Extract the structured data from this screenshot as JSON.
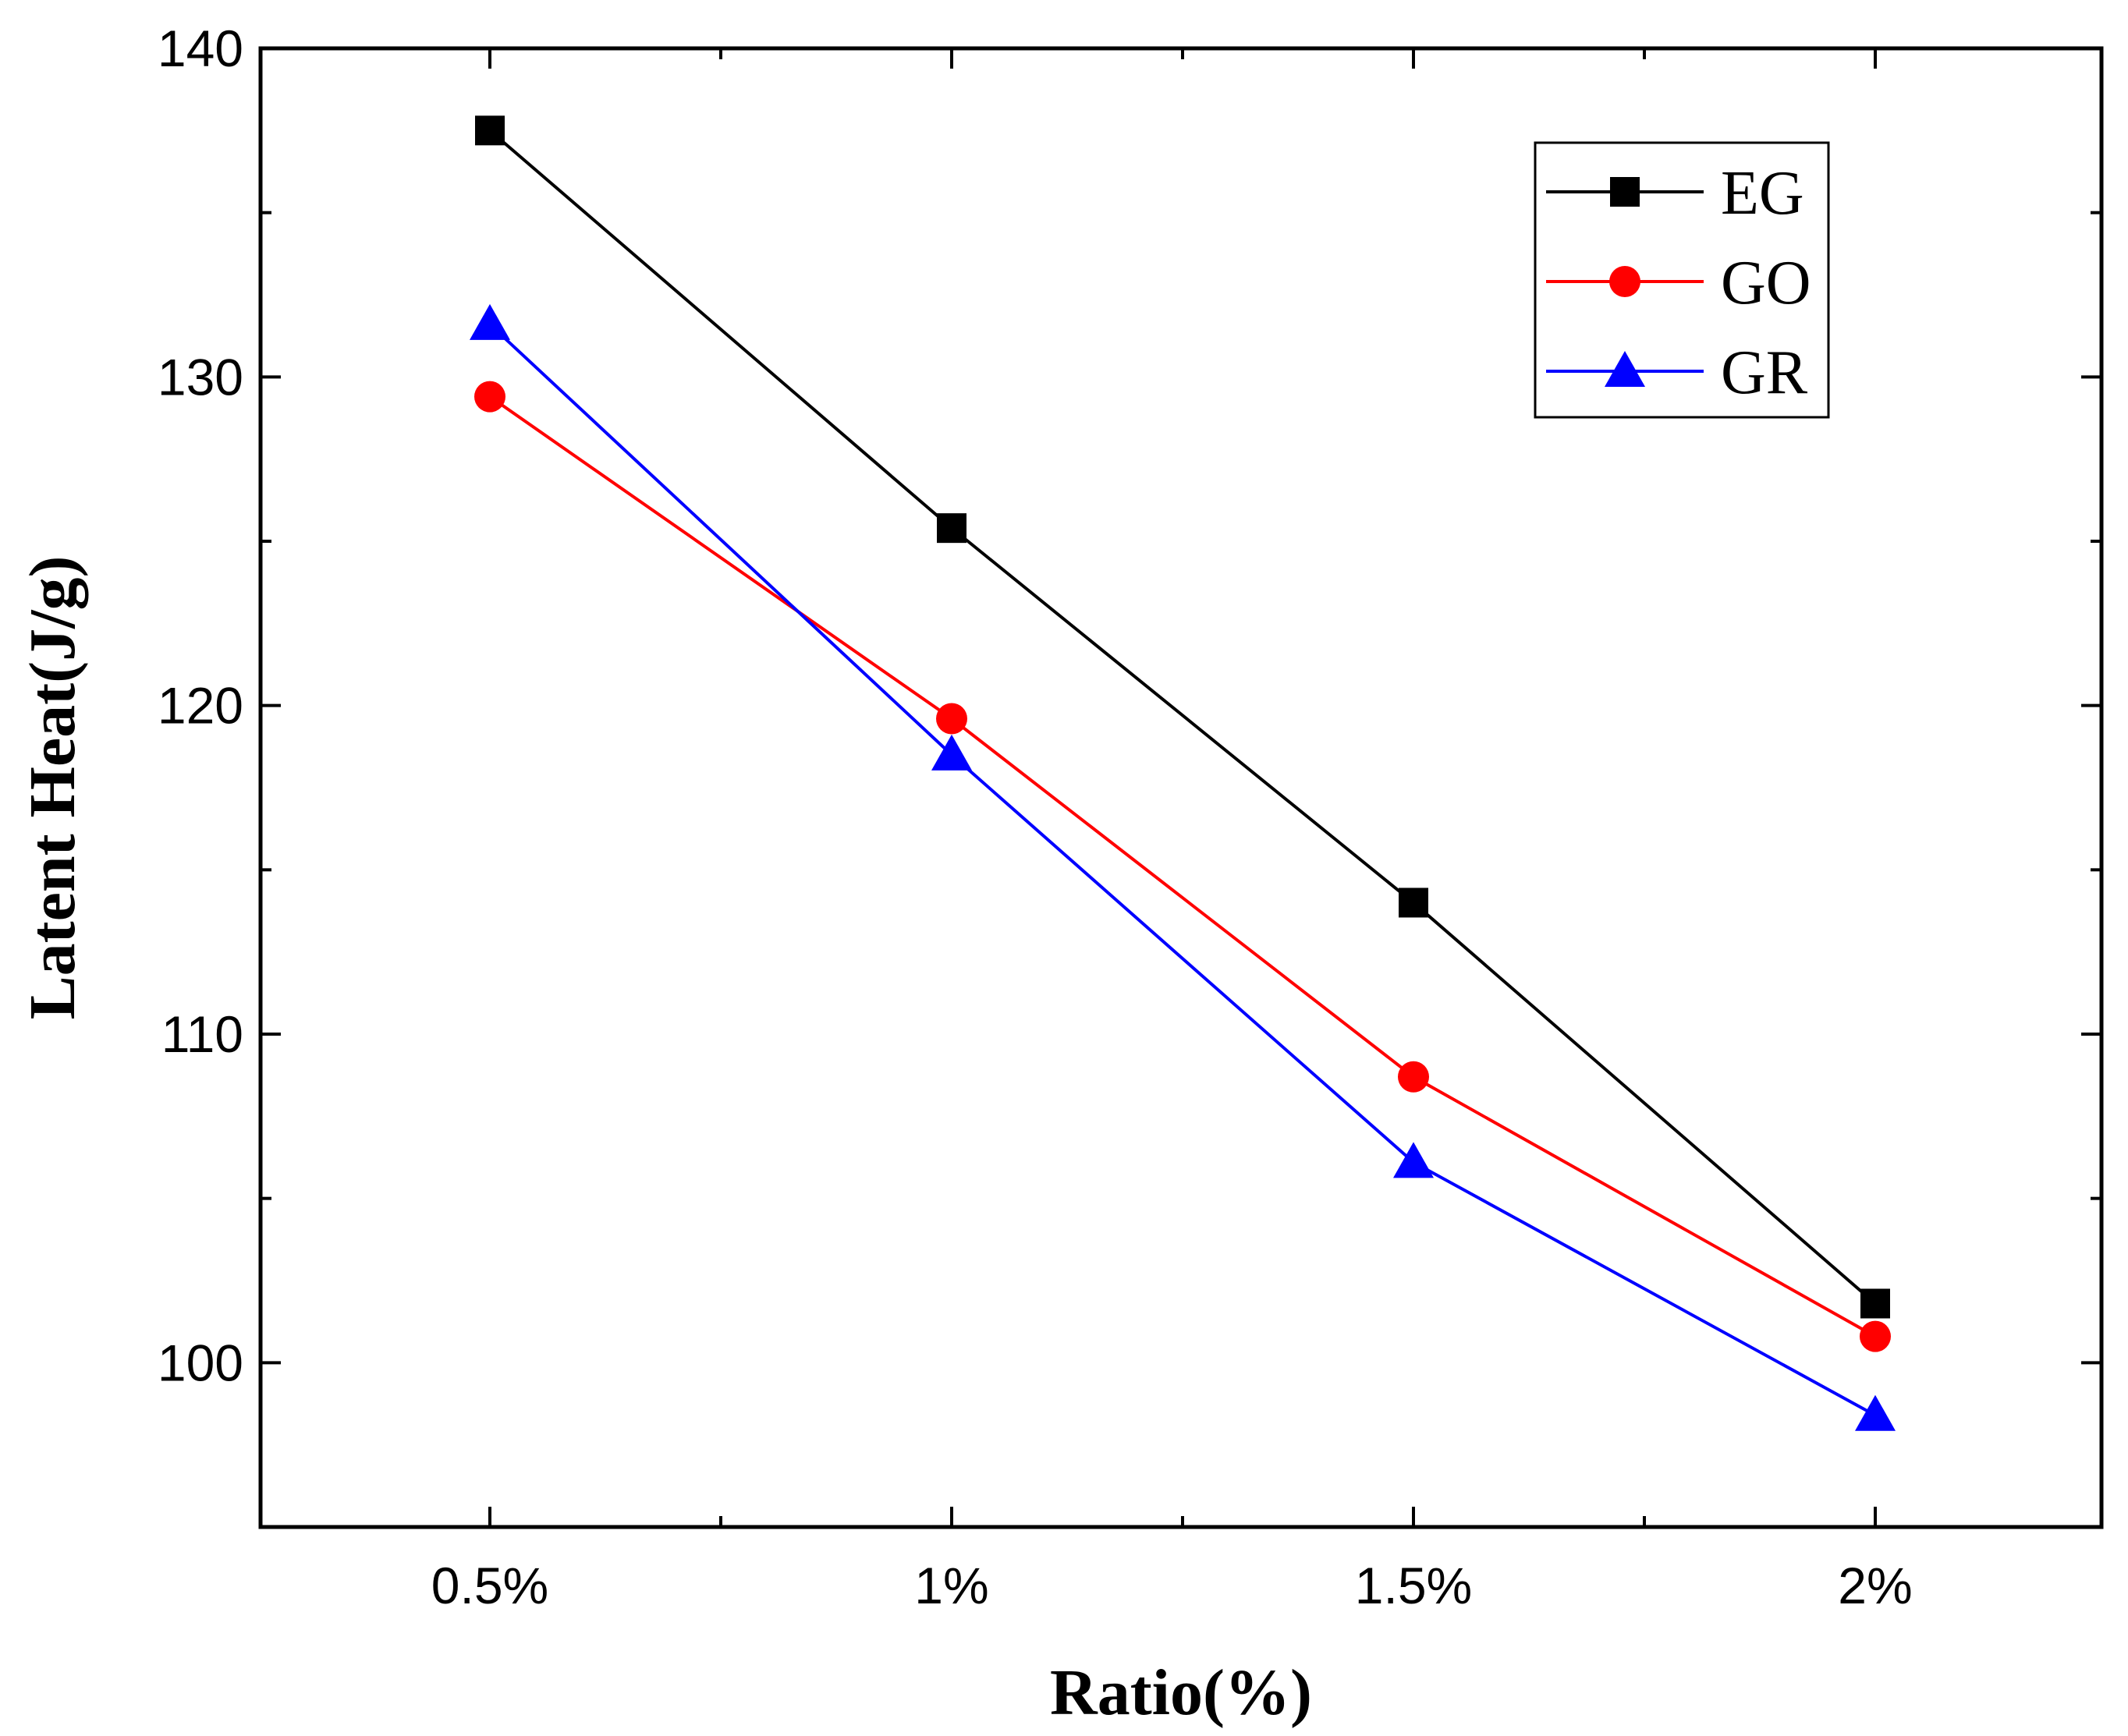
{
  "chart_data": {
    "type": "line",
    "title": "",
    "xlabel": "Ratio(%)",
    "ylabel": "Latent Heat(J/g)",
    "categories": [
      "0.5%",
      "1%",
      "1.5%",
      "2%"
    ],
    "ylim": [
      95,
      140
    ],
    "yticks": [
      100,
      110,
      120,
      130,
      140
    ],
    "legend_position": "top-right",
    "series": [
      {
        "name": "EG",
        "color": "#000000",
        "marker": "square",
        "values": [
          137.5,
          125.4,
          114.0,
          101.8
        ]
      },
      {
        "name": "GO",
        "color": "#ff0000",
        "marker": "circle",
        "values": [
          129.4,
          119.6,
          108.7,
          100.8
        ]
      },
      {
        "name": "GR",
        "color": "#0000ff",
        "marker": "triangle",
        "values": [
          131.6,
          118.5,
          106.1,
          98.4
        ]
      }
    ]
  }
}
